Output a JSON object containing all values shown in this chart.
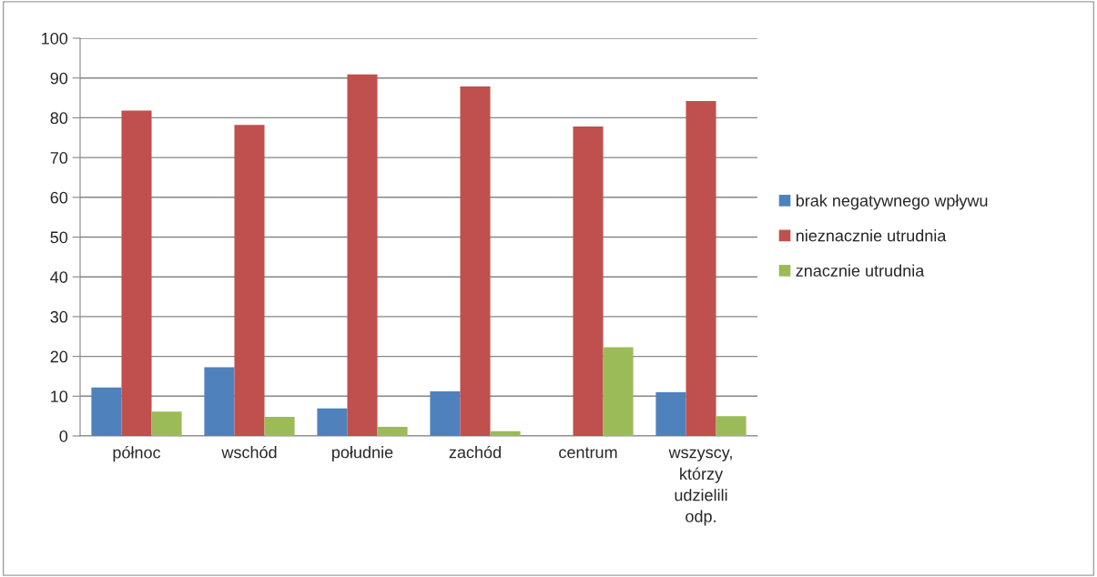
{
  "chart_data": {
    "type": "bar",
    "categories": [
      "północ",
      "wschód",
      "południe",
      "zachód",
      "centrum",
      "wszyscy, którzy udzielili odp."
    ],
    "series": [
      {
        "name": "brak negatywnego wpływu",
        "color": "#4f81bd",
        "values": [
          12.2,
          17.3,
          6.9,
          11.2,
          null,
          11
        ]
      },
      {
        "name": "nieznacznie utrudnia",
        "color": "#c0504d",
        "values": [
          81.8,
          78.2,
          90.9,
          87.9,
          77.8,
          84.2
        ]
      },
      {
        "name": "znacznie utrudnia",
        "color": "#9bbb59",
        "values": [
          6.1,
          4.8,
          2.3,
          1.2,
          22.3,
          5
        ]
      }
    ],
    "ylim": [
      0,
      100
    ],
    "yticks": [
      0,
      10,
      20,
      30,
      40,
      50,
      60,
      70,
      80,
      90,
      100
    ],
    "grid": "y",
    "legend": "right"
  }
}
